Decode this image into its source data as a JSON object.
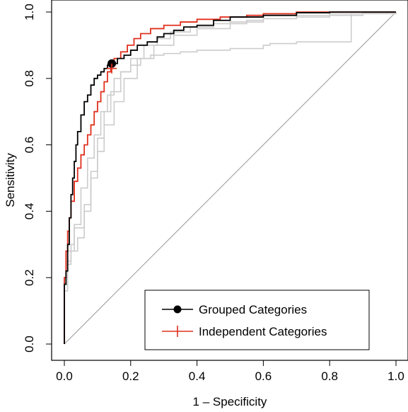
{
  "chart_data": {
    "type": "line",
    "title": "",
    "xlabel": "1 – Specificity",
    "ylabel": "Sensitivity",
    "xlim": [
      0,
      1
    ],
    "ylim": [
      0,
      1
    ],
    "x_ticks": [
      "0.0",
      "0.2",
      "0.4",
      "0.6",
      "0.8",
      "1.0"
    ],
    "y_ticks": [
      "0.0",
      "0.2",
      "0.4",
      "0.6",
      "0.8",
      "1.0"
    ],
    "grid": false,
    "legend_position": "bottom-right",
    "colors": {
      "grouped": "#000000",
      "independent": "#e0301e",
      "background_curves": "#cccccc",
      "diagonal": "#999999"
    },
    "reference_line": {
      "x": [
        0,
        1
      ],
      "y": [
        0,
        1
      ]
    },
    "series": [
      {
        "name": "Grouped Categories",
        "color": "#000000",
        "marker": "filled-circle",
        "x": [
          0,
          0.0,
          0.005,
          0.01,
          0.015,
          0.02,
          0.025,
          0.03,
          0.035,
          0.04,
          0.05,
          0.06,
          0.07,
          0.08,
          0.09,
          0.1,
          0.11,
          0.12,
          0.13,
          0.143,
          0.16,
          0.18,
          0.2,
          0.22,
          0.25,
          0.28,
          0.3,
          0.33,
          0.36,
          0.4,
          0.45,
          0.5,
          0.6,
          0.7,
          0.8,
          0.9,
          1.0
        ],
        "y": [
          0,
          0.18,
          0.22,
          0.3,
          0.38,
          0.45,
          0.5,
          0.55,
          0.6,
          0.64,
          0.69,
          0.73,
          0.75,
          0.78,
          0.8,
          0.81,
          0.82,
          0.83,
          0.84,
          0.845,
          0.86,
          0.87,
          0.885,
          0.9,
          0.91,
          0.925,
          0.935,
          0.945,
          0.955,
          0.96,
          0.975,
          0.985,
          0.99,
          0.998,
          1.0,
          1.0,
          1.0
        ],
        "highlight_point": {
          "x": 0.143,
          "y": 0.845
        }
      },
      {
        "name": "Independent Categories",
        "color": "#e0301e",
        "marker": "plus",
        "x": [
          0,
          0.0,
          0.005,
          0.01,
          0.015,
          0.02,
          0.03,
          0.04,
          0.05,
          0.06,
          0.07,
          0.08,
          0.09,
          0.1,
          0.11,
          0.12,
          0.13,
          0.14,
          0.15,
          0.17,
          0.19,
          0.21,
          0.23,
          0.26,
          0.3,
          0.35,
          0.4,
          0.47,
          0.55,
          0.6,
          0.7,
          0.8,
          0.9,
          1.0
        ],
        "y": [
          0,
          0.2,
          0.28,
          0.34,
          0.38,
          0.43,
          0.49,
          0.53,
          0.57,
          0.6,
          0.63,
          0.66,
          0.7,
          0.73,
          0.76,
          0.79,
          0.82,
          0.84,
          0.86,
          0.88,
          0.9,
          0.92,
          0.935,
          0.95,
          0.96,
          0.97,
          0.978,
          0.985,
          0.99,
          0.995,
          1.0,
          1.0,
          1.0,
          1.0
        ],
        "highlight_point": {
          "x": 0.143,
          "y": 0.83
        }
      },
      {
        "color": "#cccccc",
        "x": [
          0,
          0.0,
          0.01,
          0.02,
          0.03,
          0.05,
          0.07,
          0.09,
          0.11,
          0.13,
          0.15,
          0.17,
          0.2,
          0.23,
          0.26,
          0.3,
          0.35,
          0.4,
          0.5,
          0.6,
          0.62,
          0.7,
          0.8,
          0.86,
          0.865,
          0.9,
          1.0
        ],
        "y": [
          0,
          0.18,
          0.25,
          0.3,
          0.36,
          0.47,
          0.56,
          0.63,
          0.7,
          0.75,
          0.8,
          0.82,
          0.84,
          0.86,
          0.87,
          0.875,
          0.88,
          0.885,
          0.89,
          0.9,
          0.905,
          0.91,
          0.91,
          0.91,
          0.995,
          0.998,
          1.0
        ]
      },
      {
        "color": "#cccccc",
        "x": [
          0,
          0.0,
          0.01,
          0.02,
          0.04,
          0.06,
          0.08,
          0.1,
          0.12,
          0.14,
          0.17,
          0.2,
          0.24,
          0.28,
          0.32,
          0.38,
          0.45,
          0.55,
          0.6,
          0.7,
          0.8,
          0.9,
          1.0
        ],
        "y": [
          0,
          0.16,
          0.24,
          0.28,
          0.32,
          0.42,
          0.52,
          0.62,
          0.7,
          0.76,
          0.82,
          0.86,
          0.9,
          0.92,
          0.94,
          0.955,
          0.965,
          0.975,
          0.98,
          0.99,
          0.995,
          1.0,
          1.0
        ]
      },
      {
        "color": "#cccccc",
        "x": [
          0,
          0.0,
          0.01,
          0.03,
          0.05,
          0.06,
          0.08,
          0.1,
          0.12,
          0.15,
          0.18,
          0.22,
          0.27,
          0.33,
          0.4,
          0.5,
          0.6,
          0.7,
          0.8,
          0.9,
          1.0
        ],
        "y": [
          0,
          0.2,
          0.28,
          0.35,
          0.35,
          0.4,
          0.5,
          0.58,
          0.66,
          0.73,
          0.8,
          0.86,
          0.9,
          0.93,
          0.95,
          0.97,
          0.98,
          0.985,
          0.99,
          0.995,
          1.0
        ]
      }
    ]
  }
}
